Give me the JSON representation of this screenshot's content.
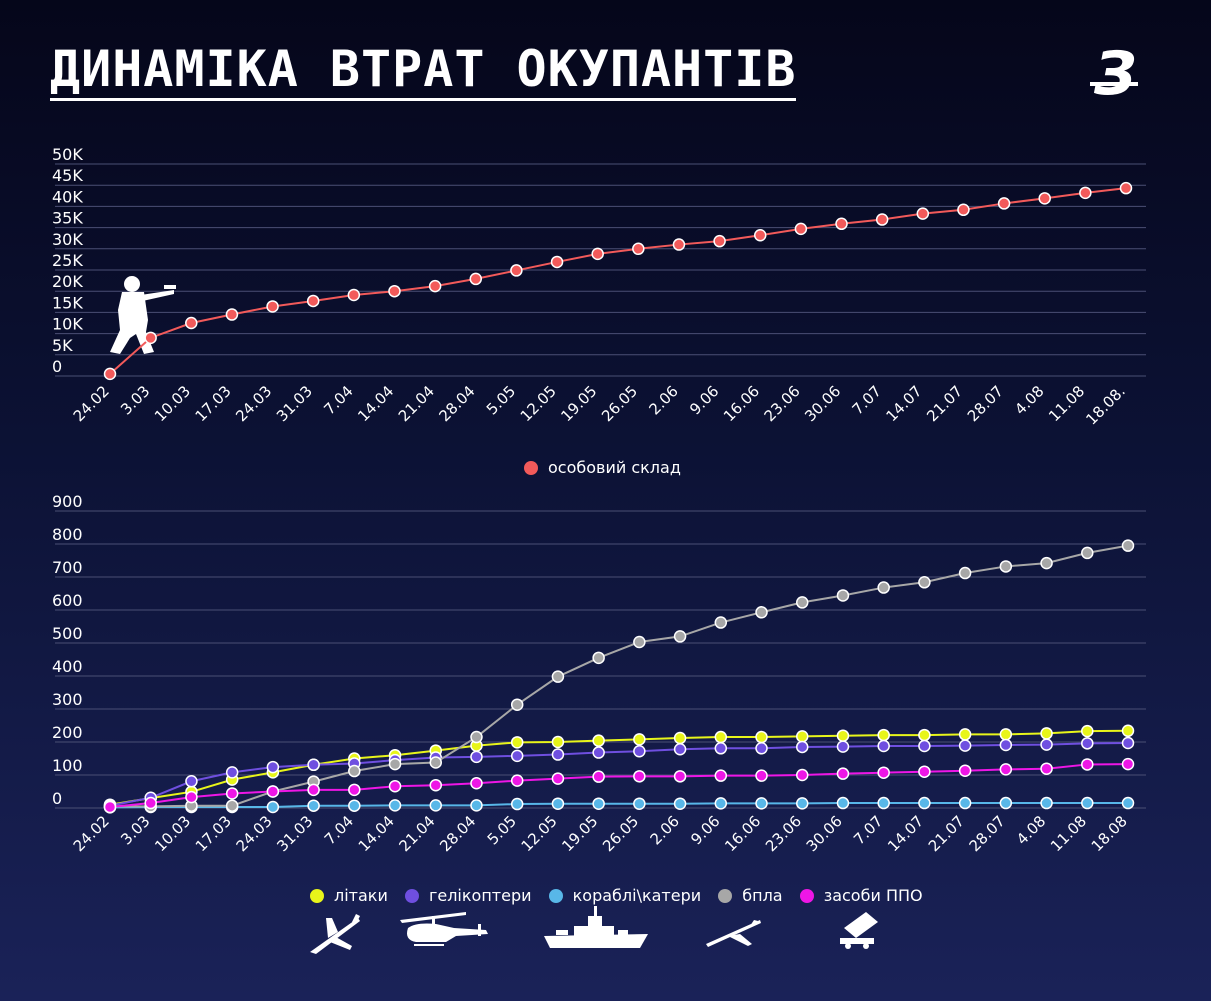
{
  "title": "ДИНАМІКА ВТРАТ ОКУПАНТІВ",
  "logo_text": "З",
  "colors": {
    "personnel": "#f25a5a",
    "planes": "#e8f51a",
    "helicopters": "#6f4fe0",
    "ships": "#58b7e8",
    "drones": "#a7a7a7",
    "air_defense": "#ee16e6",
    "grid": "#4a4f74"
  },
  "icons": [
    "soldier-icon",
    "plane-icon",
    "helicopter-icon",
    "ship-icon",
    "drone-icon",
    "air-defense-icon"
  ],
  "chart_data": [
    {
      "type": "line",
      "categories": [
        "24.02",
        "3.03",
        "10.03",
        "17.03",
        "24.03",
        "31.03",
        "7.04",
        "14.04",
        "21.04",
        "28.04",
        "5.05",
        "12.05",
        "19.05",
        "26.05",
        "2.06",
        "9.06",
        "16.06",
        "23.06",
        "30.06",
        "7.07",
        "14.07",
        "21.07",
        "28.07",
        "4.08",
        "11.08",
        "18.08."
      ],
      "yticks": [
        "50K",
        "45K",
        "40K",
        "35K",
        "30K",
        "25K",
        "20K",
        "15K",
        "10K",
        "5K",
        "0"
      ],
      "ylim": [
        0,
        50000
      ],
      "grid": true,
      "legend_position": "bottom-center",
      "series": [
        {
          "name": "особовий склад",
          "color": "#f25a5a",
          "values": [
            500,
            9000,
            12500,
            14500,
            16400,
            17700,
            19100,
            20000,
            21200,
            22900,
            24900,
            26900,
            28800,
            30000,
            31000,
            31800,
            33200,
            34700,
            35900,
            36900,
            38300,
            39200,
            40700,
            41900,
            43200,
            44300
          ]
        }
      ]
    },
    {
      "type": "line",
      "categories": [
        "24.02",
        "3.03",
        "10.03",
        "17.03",
        "24.03",
        "31.03",
        "7.04",
        "14.04",
        "21.04",
        "28.04",
        "5.05",
        "12.05",
        "19.05",
        "26.05",
        "2.06",
        "9.06",
        "16.06",
        "23.06",
        "30.06",
        "7.07",
        "14.07",
        "21.07",
        "28.07",
        "4.08",
        "11.08",
        "18.08"
      ],
      "yticks": [
        "900",
        "800",
        "700",
        "600",
        "500",
        "400",
        "300",
        "200",
        "100",
        "0"
      ],
      "ylim": [
        0,
        900
      ],
      "grid": true,
      "legend_position": "bottom-center",
      "series": [
        {
          "name": "літаки",
          "color": "#e8f51a",
          "values": [
            10,
            30,
            49,
            86,
            108,
            131,
            150,
            160,
            174,
            189,
            199,
            200,
            204,
            208,
            212,
            215,
            215,
            217,
            219,
            221,
            221,
            223,
            223,
            226,
            233,
            234
          ]
        },
        {
          "name": "гелікоптери",
          "color": "#6f4fe0",
          "values": [
            7,
            31,
            81,
            108,
            124,
            131,
            135,
            145,
            153,
            155,
            158,
            162,
            168,
            172,
            178,
            181,
            181,
            185,
            186,
            188,
            188,
            189,
            191,
            192,
            196,
            197
          ]
        },
        {
          "name": "кораблі\\катери",
          "color": "#58b7e8",
          "values": [
            2,
            3,
            3,
            3,
            3,
            7,
            7,
            8,
            8,
            8,
            12,
            13,
            13,
            13,
            13,
            14,
            14,
            14,
            15,
            15,
            15,
            15,
            15,
            15,
            15,
            15
          ]
        },
        {
          "name": "бпла",
          "color": "#a7a7a7",
          "values": [
            5,
            5,
            7,
            7,
            50,
            80,
            112,
            133,
            138,
            215,
            313,
            398,
            455,
            503,
            520,
            562,
            593,
            623,
            644,
            668,
            684,
            712,
            732,
            742,
            773,
            795
          ]
        },
        {
          "name": "засоби ППО",
          "color": "#ee16e6",
          "values": [
            3,
            15,
            33,
            44,
            50,
            55,
            55,
            66,
            69,
            75,
            83,
            89,
            95,
            96,
            96,
            98,
            98,
            100,
            104,
            107,
            110,
            113,
            117,
            119,
            132,
            133
          ]
        }
      ]
    }
  ]
}
